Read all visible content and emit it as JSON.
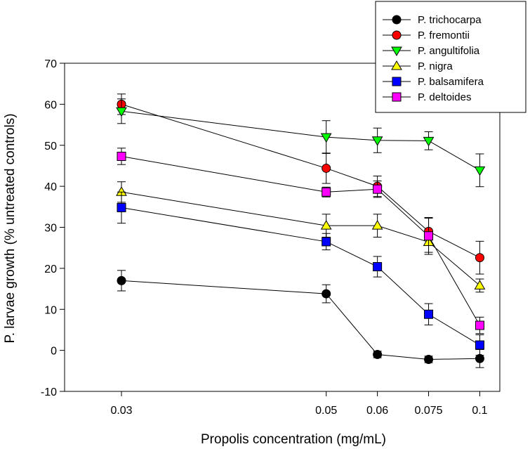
{
  "chart_data": {
    "type": "line",
    "title": "",
    "xlabel": "Propolis concentration (mg/mL)",
    "ylabel": "P. larvae growth (% untreated controls)",
    "xscale": "reciprocal",
    "x": [
      0.03,
      0.05,
      0.06,
      0.075,
      0.1
    ],
    "x_tick_labels": [
      "0.03",
      "0.05",
      "0.06",
      "0.075",
      "0.1"
    ],
    "xlim": [
      0.027,
      0.115
    ],
    "ylim": [
      -10,
      70
    ],
    "y_ticks": [
      -10,
      0,
      10,
      20,
      30,
      40,
      50,
      60,
      70
    ],
    "grid": false,
    "legend_position": "top-right",
    "error_bars": true,
    "series": [
      {
        "name": "P. trichocarpa",
        "marker": "circle",
        "color": "#000000",
        "values": [
          17.0,
          13.8,
          -1.0,
          -2.2,
          -2.0
        ],
        "errors": [
          2.5,
          2.2,
          0.8,
          0.8,
          2.2
        ]
      },
      {
        "name": "P. fremontii",
        "marker": "circle",
        "color": "#ff0000",
        "values": [
          60.0,
          44.4,
          40.0,
          29.0,
          22.6
        ],
        "errors": [
          2.5,
          3.7,
          2.5,
          3.2,
          4.0
        ]
      },
      {
        "name": "P. angultifolia",
        "marker": "triangle-down",
        "color": "#00ff00",
        "values": [
          58.3,
          52.0,
          51.2,
          51.1,
          43.9
        ],
        "errors": [
          3.0,
          4.0,
          3.0,
          2.2,
          4.0
        ]
      },
      {
        "name": "P. nigra",
        "marker": "triangle-up",
        "color": "#ffff00",
        "values": [
          38.6,
          30.4,
          30.4,
          26.4,
          15.8
        ],
        "errors": [
          2.5,
          2.8,
          2.8,
          2.5,
          1.6
        ]
      },
      {
        "name": "P. balsamifera",
        "marker": "square",
        "color": "#0000ff",
        "values": [
          34.8,
          26.5,
          20.4,
          8.8,
          1.3
        ],
        "errors": [
          3.8,
          2.0,
          2.5,
          2.6,
          2.5
        ]
      },
      {
        "name": "P. deltoides",
        "marker": "square",
        "color": "#ff00ff",
        "values": [
          47.3,
          38.6,
          39.3,
          27.9,
          6.1
        ],
        "errors": [
          2.0,
          1.2,
          2.0,
          4.5,
          2.0
        ]
      }
    ]
  }
}
